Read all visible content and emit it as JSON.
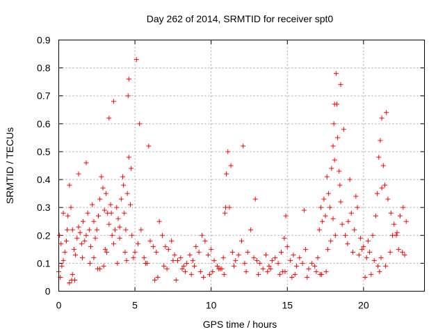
{
  "chart_data": {
    "type": "scatter",
    "title": "Day 262 of 2014, SRMTID for receiver spt0",
    "xlabel": "GPS time / hours",
    "ylabel": "SRMTID / TECUs",
    "xlim": [
      0,
      24
    ],
    "ylim": [
      0,
      0.9
    ],
    "xticks": [
      0,
      5,
      10,
      15,
      20
    ],
    "yticks": [
      0,
      0.1,
      0.2,
      0.3,
      0.4,
      0.5,
      0.6,
      0.7,
      0.8,
      0.9
    ],
    "xtick_labels": [
      "0",
      "5",
      "10",
      "15",
      "20"
    ],
    "ytick_labels": [
      "0",
      "0.1",
      "0.2",
      "0.3",
      "0.4",
      "0.5",
      "0.6",
      "0.7",
      "0.8",
      "0.9"
    ],
    "grid": true,
    "marker": "+",
    "color": "#ff0000",
    "series": [
      {
        "name": "spt0",
        "x": [
          0.0,
          0.1,
          0.2,
          0.3,
          0.4,
          0.5,
          0.6,
          0.7,
          0.8,
          0.9,
          1.0,
          1.1,
          1.2,
          1.3,
          1.4,
          1.5,
          1.6,
          1.7,
          1.8,
          1.9,
          2.0,
          2.1,
          2.2,
          2.3,
          2.4,
          2.5,
          2.6,
          2.7,
          2.8,
          2.9,
          3.0,
          3.1,
          3.2,
          3.3,
          3.4,
          3.5,
          3.6,
          3.7,
          3.8,
          3.9,
          4.0,
          4.1,
          4.2,
          4.3,
          4.4,
          4.5,
          4.6,
          4.7,
          4.8,
          4.9,
          5.0,
          5.2,
          5.4,
          5.6,
          5.8,
          6.0,
          6.2,
          6.4,
          6.6,
          6.8,
          7.0,
          7.2,
          7.4,
          7.6,
          7.8,
          8.0,
          8.2,
          8.4,
          8.6,
          8.8,
          9.0,
          9.2,
          9.4,
          9.6,
          9.8,
          10.0,
          10.2,
          10.4,
          10.6,
          10.8,
          10.9,
          11.0,
          11.1,
          11.2,
          11.4,
          11.6,
          11.8,
          12.0,
          12.2,
          12.4,
          12.6,
          12.8,
          13.0,
          13.2,
          13.4,
          13.6,
          13.8,
          14.0,
          14.2,
          14.4,
          14.6,
          14.8,
          14.9,
          15.0,
          15.2,
          15.4,
          15.6,
          15.8,
          16.0,
          16.2,
          16.4,
          16.6,
          16.8,
          17.0,
          17.1,
          17.2,
          17.3,
          17.4,
          17.5,
          17.6,
          17.7,
          17.8,
          17.9,
          18.0,
          18.05,
          18.1,
          18.2,
          18.3,
          18.4,
          18.5,
          18.6,
          18.8,
          19.0,
          19.2,
          19.4,
          19.6,
          19.8,
          20.0,
          20.2,
          20.4,
          20.6,
          20.8,
          20.9,
          21.0,
          21.1,
          21.2,
          21.3,
          21.4,
          21.6,
          21.8,
          22.0,
          22.2,
          22.4,
          22.6,
          22.8,
          0.05,
          0.3,
          0.7,
          0.85,
          0.9,
          1.3,
          1.8,
          2.3,
          2.7,
          2.95,
          3.05,
          3.3,
          3.6,
          4.0,
          4.35,
          4.45,
          4.55,
          4.6,
          5.3,
          5.9,
          6.5,
          7.1,
          7.7,
          8.3,
          8.9,
          9.5,
          10.1,
          10.7,
          10.85,
          10.95,
          11.3,
          12.1,
          12.9,
          13.7,
          14.5,
          14.85,
          15.3,
          16.1,
          16.9,
          17.25,
          17.55,
          17.85,
          18.0,
          18.1,
          18.25,
          18.5,
          18.7,
          19.1,
          19.5,
          19.9,
          20.3,
          20.7,
          20.95,
          21.05,
          21.2,
          21.5,
          21.9,
          22.3,
          22.7,
          0.15,
          0.55,
          1.05,
          1.55,
          2.05,
          2.55,
          3.15,
          3.45,
          3.85,
          4.25,
          4.75,
          5.1,
          5.7,
          6.3,
          6.9,
          7.5,
          8.1,
          8.7,
          9.3,
          9.9,
          10.5,
          11.5,
          12.3,
          13.1,
          13.9,
          14.7,
          15.5,
          16.3,
          17.15,
          17.65,
          18.15,
          18.45,
          18.95,
          19.3,
          19.7,
          20.1,
          20.5,
          21.15,
          21.45,
          21.75,
          22.15,
          22.55
        ],
        "y": [
          0.07,
          0.05,
          0.09,
          0.11,
          0.14,
          0.18,
          0.27,
          0.38,
          0.3,
          0.22,
          0.15,
          0.13,
          0.19,
          0.23,
          0.21,
          0.17,
          0.25,
          0.18,
          0.2,
          0.28,
          0.22,
          0.16,
          0.31,
          0.25,
          0.19,
          0.22,
          0.27,
          0.33,
          0.41,
          0.37,
          0.29,
          0.35,
          0.28,
          0.24,
          0.31,
          0.2,
          0.17,
          0.22,
          0.3,
          0.26,
          0.19,
          0.33,
          0.41,
          0.28,
          0.22,
          0.35,
          0.48,
          0.31,
          0.2,
          0.12,
          0.14,
          0.17,
          0.22,
          0.12,
          0.1,
          0.18,
          0.16,
          0.14,
          0.25,
          0.2,
          0.16,
          0.15,
          0.18,
          0.13,
          0.11,
          0.12,
          0.09,
          0.1,
          0.13,
          0.11,
          0.16,
          0.14,
          0.2,
          0.18,
          0.13,
          0.15,
          0.11,
          0.09,
          0.08,
          0.12,
          0.28,
          0.42,
          0.5,
          0.3,
          0.14,
          0.11,
          0.13,
          0.18,
          0.1,
          0.14,
          0.22,
          0.12,
          0.11,
          0.1,
          0.08,
          0.13,
          0.09,
          0.11,
          0.12,
          0.1,
          0.14,
          0.19,
          0.27,
          0.16,
          0.11,
          0.13,
          0.09,
          0.12,
          0.1,
          0.15,
          0.08,
          0.1,
          0.09,
          0.12,
          0.22,
          0.3,
          0.25,
          0.33,
          0.27,
          0.41,
          0.35,
          0.3,
          0.44,
          0.52,
          0.6,
          0.67,
          0.78,
          0.55,
          0.43,
          0.32,
          0.24,
          0.2,
          0.25,
          0.28,
          0.22,
          0.3,
          0.19,
          0.16,
          0.12,
          0.14,
          0.2,
          0.27,
          0.35,
          0.48,
          0.54,
          0.62,
          0.45,
          0.38,
          0.33,
          0.28,
          0.24,
          0.21,
          0.27,
          0.3,
          0.25,
          0.2,
          0.28,
          0.03,
          0.04,
          0.06,
          0.42,
          0.46,
          0.12,
          0.08,
          0.09,
          0.15,
          0.62,
          0.68,
          0.23,
          0.14,
          0.11,
          0.7,
          0.76,
          0.6,
          0.52,
          0.05,
          0.08,
          0.04,
          0.07,
          0.09,
          0.05,
          0.07,
          0.08,
          0.06,
          0.3,
          0.45,
          0.52,
          0.33,
          0.07,
          0.06,
          0.07,
          0.05,
          0.29,
          0.07,
          0.06,
          0.07,
          0.18,
          0.26,
          0.47,
          0.67,
          0.74,
          0.58,
          0.4,
          0.34,
          0.15,
          0.18,
          0.11,
          0.09,
          0.07,
          0.37,
          0.64,
          0.2,
          0.15,
          0.13,
          0.17,
          0.22,
          0.04,
          0.12,
          0.1,
          0.08,
          0.14,
          0.28,
          0.1,
          0.38,
          0.44,
          0.83,
          0.1,
          0.04,
          0.09,
          0.11,
          0.08,
          0.06,
          0.07,
          0.06,
          0.08,
          0.09,
          0.07,
          0.06,
          0.08,
          0.07,
          0.06,
          0.05,
          0.06,
          0.15,
          0.2,
          0.38,
          0.17,
          0.14,
          0.13,
          0.05,
          0.06,
          0.12,
          0.09,
          0.14,
          0.2,
          0.14
        ]
      }
    ]
  }
}
